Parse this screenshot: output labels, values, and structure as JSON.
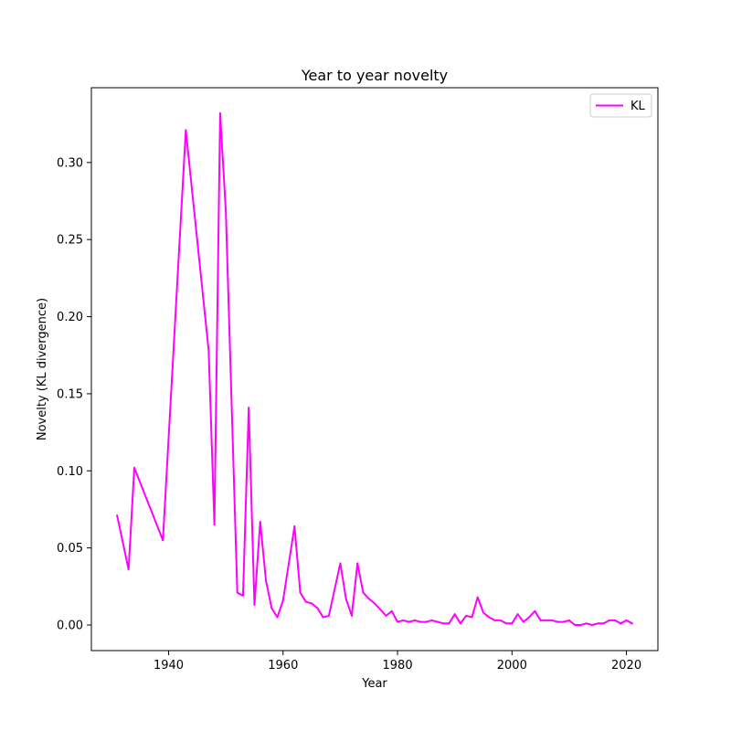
{
  "chart_data": {
    "type": "line",
    "title": "Year to year novelty",
    "xlabel": "Year",
    "ylabel": "Novelty (KL divergence)",
    "xlim": [
      1926.5,
      2025.5
    ],
    "ylim": [
      -0.0166,
      0.3485
    ],
    "xticks": [
      {
        "value": 1940,
        "label": "1940"
      },
      {
        "value": 1960,
        "label": "1960"
      },
      {
        "value": 1980,
        "label": "1980"
      },
      {
        "value": 2000,
        "label": "2000"
      },
      {
        "value": 2020,
        "label": "2020"
      }
    ],
    "yticks": [
      {
        "value": 0.0,
        "label": "0.00"
      },
      {
        "value": 0.05,
        "label": "0.05"
      },
      {
        "value": 0.1,
        "label": "0.10"
      },
      {
        "value": 0.15,
        "label": "0.15"
      },
      {
        "value": 0.2,
        "label": "0.20"
      },
      {
        "value": 0.25,
        "label": "0.25"
      },
      {
        "value": 0.3,
        "label": "0.30"
      }
    ],
    "grid": false,
    "legend_position": "top-right",
    "series": [
      {
        "name": "KL",
        "color": "#ff00ff",
        "x": [
          1931,
          1933,
          1934,
          1939,
          1943,
          1947,
          1948,
          1949,
          1950,
          1952,
          1953,
          1954,
          1955,
          1956,
          1957,
          1958,
          1959,
          1960,
          1962,
          1963,
          1964,
          1965,
          1966,
          1967,
          1968,
          1970,
          1971,
          1972,
          1973,
          1974,
          1975,
          1976,
          1978,
          1979,
          1980,
          1981,
          1982,
          1983,
          1984,
          1985,
          1986,
          1987,
          1988,
          1989,
          1990,
          1991,
          1992,
          1993,
          1994,
          1995,
          1996,
          1997,
          1998,
          1999,
          2000,
          2001,
          2002,
          2003,
          2004,
          2005,
          2007,
          2008,
          2009,
          2010,
          2011,
          2012,
          2013,
          2014,
          2015,
          2016,
          2017,
          2018,
          2019,
          2020,
          2021
        ],
        "y": [
          0.071,
          0.036,
          0.102,
          0.055,
          0.321,
          0.178,
          0.065,
          0.332,
          0.268,
          0.021,
          0.019,
          0.141,
          0.013,
          0.067,
          0.029,
          0.011,
          0.005,
          0.016,
          0.064,
          0.021,
          0.015,
          0.014,
          0.011,
          0.005,
          0.006,
          0.04,
          0.017,
          0.006,
          0.04,
          0.021,
          0.017,
          0.014,
          0.006,
          0.009,
          0.002,
          0.003,
          0.002,
          0.003,
          0.002,
          0.002,
          0.003,
          0.002,
          0.001,
          0.001,
          0.007,
          0.001,
          0.006,
          0.005,
          0.018,
          0.008,
          0.005,
          0.003,
          0.003,
          0.001,
          0.001,
          0.007,
          0.002,
          0.005,
          0.009,
          0.003,
          0.003,
          0.002,
          0.002,
          0.003,
          0.0,
          0.0,
          0.001,
          0.0,
          0.001,
          0.001,
          0.003,
          0.003,
          0.001,
          0.003,
          0.001
        ]
      }
    ]
  }
}
